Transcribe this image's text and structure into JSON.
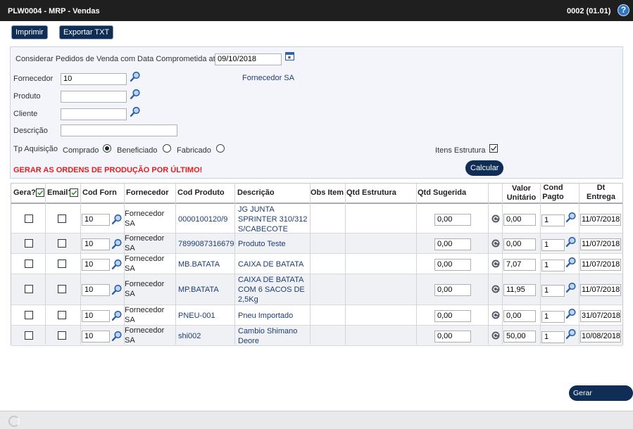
{
  "title": "PLW0004 - MRP - Vendas",
  "version": "0002 (01.01)",
  "help": "?",
  "buttons": {
    "imprimir": "Imprimir",
    "exportar": "Exportar TXT",
    "calcular": "Calcular",
    "gerar": "Gerar Requisições"
  },
  "filter": {
    "considerar_label": "Considerar Pedidos de Venda com Data Comprometida até",
    "data": "09/10/2018",
    "fornecedor_label": "Fornecedor",
    "fornecedor_value": "10",
    "fornecedor_nome": "Fornecedor SA",
    "produto_label": "Produto",
    "produto_value": "",
    "cliente_label": "Cliente",
    "cliente_value": "",
    "descricao_label": "Descrição",
    "descricao_value": "",
    "tp_label": "Tp Aquisição",
    "comprado": "Comprado",
    "beneficiado": "Beneficiado",
    "fabricado": "Fabricado",
    "selected": "Comprado",
    "itens_estrutura": "Itens Estrutura",
    "itens_estrutura_checked": true
  },
  "warning": "GERAR AS ORDENS DE PRODUÇÃO POR ÚLTIMO!",
  "columns": {
    "gera": "Gera?",
    "email": "Email?",
    "cod_forn": "Cod Forn",
    "fornecedor": "Fornecedor",
    "cod_produto": "Cod Produto",
    "descricao": "Descrição",
    "obs_item": "Obs Item",
    "qtd_estrutura": "Qtd Estrutura",
    "qtd_sugerida": "Qtd Sugerida",
    "valor1": "Valor",
    "valor2": "Unitário",
    "cond1": "Cond",
    "cond2": "Pagto",
    "dt1": "Dt",
    "dt2": "Entrega"
  },
  "rows": [
    {
      "cod_forn": "10",
      "fornecedor": "Fornecedor SA",
      "cod_produto": "0000100120/9",
      "descricao": "JG JUNTA SPRINTER 310/312 S/CABECOTE",
      "qtd": "0,00",
      "valor": "0,00",
      "cond": "1",
      "dt": "11/07/2018"
    },
    {
      "cod_forn": "10",
      "fornecedor": "Fornecedor SA",
      "cod_produto": "7899087316679",
      "descricao": "Produto Teste",
      "qtd": "0,00",
      "valor": "0,00",
      "cond": "1",
      "dt": "11/07/2018"
    },
    {
      "cod_forn": "10",
      "fornecedor": "Fornecedor SA",
      "cod_produto": "MB.BATATA",
      "descricao": "CAIXA DE BATATA",
      "qtd": "0,00",
      "valor": "7,07",
      "cond": "1",
      "dt": "11/07/2018"
    },
    {
      "cod_forn": "10",
      "fornecedor": "Fornecedor SA",
      "cod_produto": "MP.BATATA",
      "descricao": "CAIXA DE BATATA COM 6 SACOS DE 2,5Kg",
      "qtd": "0,00",
      "valor": "11,95",
      "cond": "1",
      "dt": "11/07/2018"
    },
    {
      "cod_forn": "10",
      "fornecedor": "Fornecedor SA",
      "cod_produto": "PNEU-001",
      "descricao": "Pneu Importado",
      "qtd": "0,00",
      "valor": "0,00",
      "cond": "1",
      "dt": "31/07/2018"
    },
    {
      "cod_forn": "10",
      "fornecedor": "Fornecedor SA",
      "cod_produto": "shi002",
      "descricao": "Cambio Shimano Deore",
      "qtd": "0,00",
      "valor": "50,00",
      "cond": "1",
      "dt": "10/08/2018"
    }
  ]
}
